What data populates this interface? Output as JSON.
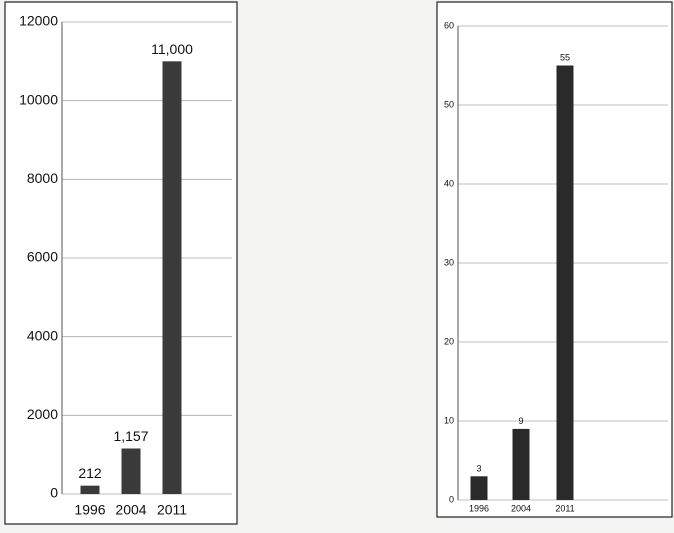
{
  "chart_data": [
    {
      "type": "bar",
      "categories": [
        "1996",
        "2004",
        "2011"
      ],
      "values": [
        212,
        1157,
        11000
      ],
      "value_labels": [
        "212",
        "1,157",
        "11,000"
      ],
      "color": "#3a3a3a",
      "ylim": [
        0,
        12000
      ],
      "yticks": [
        0,
        2000,
        4000,
        6000,
        8000,
        10000,
        12000
      ],
      "grid": true
    },
    {
      "type": "bar",
      "categories": [
        "1996",
        "2004",
        "2011"
      ],
      "values": [
        3,
        9,
        55
      ],
      "color": "#2a2a2a",
      "ylim": [
        0,
        60
      ],
      "yticks": [
        0,
        10,
        20,
        30,
        40,
        50,
        60
      ],
      "grid": true
    }
  ]
}
